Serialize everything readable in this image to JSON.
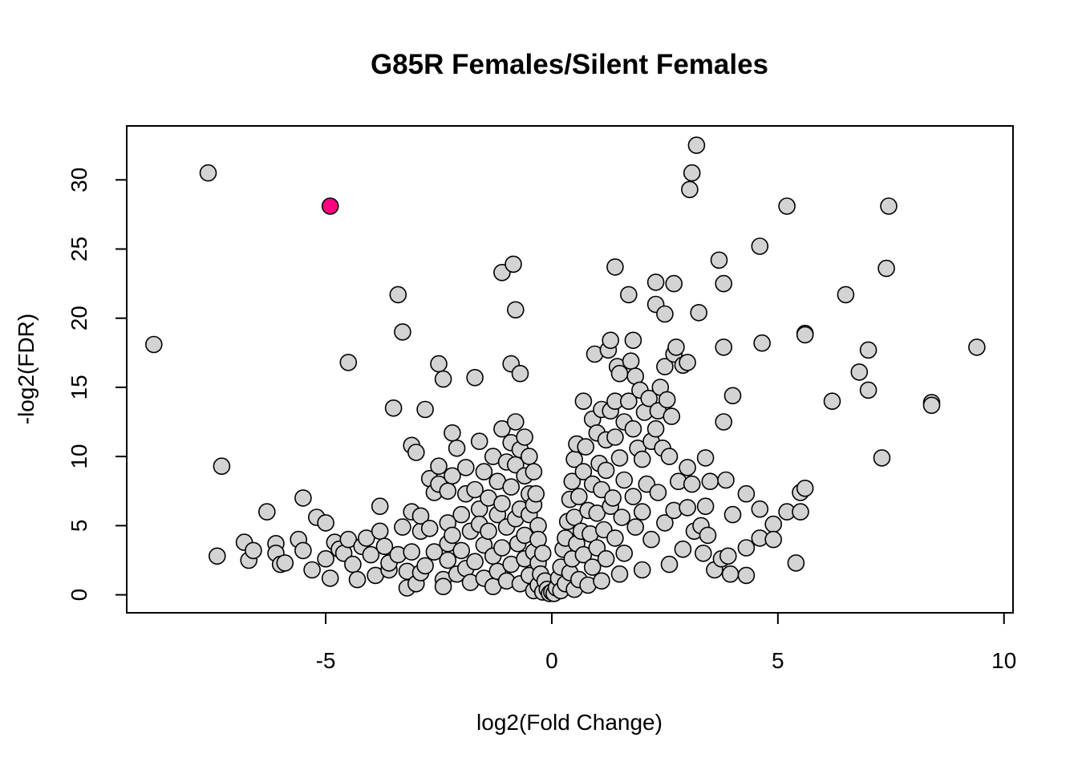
{
  "chart_data": {
    "type": "scatter",
    "title": "G85R Females/Silent Females",
    "xlabel": "log2(Fold Change)",
    "ylabel": "-log2(FDR)",
    "xlim": [
      -9.4,
      10.2
    ],
    "ylim": [
      -1.3,
      33.9
    ],
    "x_ticks": [
      -5,
      0,
      5,
      10
    ],
    "y_ticks": [
      0,
      5,
      10,
      15,
      20,
      25,
      30
    ],
    "grid": false,
    "legend": "none",
    "colors": {
      "point_fill": "#d3d3d3",
      "highlight_fill": "#ff0080",
      "stroke": "#000000"
    },
    "highlighted": [
      {
        "x": -4.9,
        "y": 28.1
      }
    ],
    "points": [
      [
        -8.8,
        18.1
      ],
      [
        -7.6,
        30.5
      ],
      [
        -7.3,
        9.3
      ],
      [
        -7.4,
        2.8
      ],
      [
        -6.8,
        3.8
      ],
      [
        -6.7,
        2.5
      ],
      [
        -6.6,
        3.2
      ],
      [
        -6.3,
        6.0
      ],
      [
        -6.1,
        3.7
      ],
      [
        -6.1,
        3.0
      ],
      [
        -6.0,
        2.2
      ],
      [
        -5.9,
        2.3
      ],
      [
        -5.6,
        4.0
      ],
      [
        -5.5,
        3.2
      ],
      [
        -5.5,
        7.0
      ],
      [
        -5.3,
        1.8
      ],
      [
        -5.2,
        5.6
      ],
      [
        -5.0,
        5.2
      ],
      [
        -5.0,
        2.6
      ],
      [
        -4.9,
        1.2
      ],
      [
        -4.8,
        3.8
      ],
      [
        -4.7,
        3.3
      ],
      [
        -4.6,
        3.0
      ],
      [
        -4.5,
        4.0
      ],
      [
        -4.5,
        16.8
      ],
      [
        -4.4,
        2.2
      ],
      [
        -4.3,
        1.1
      ],
      [
        -4.2,
        3.5
      ],
      [
        -4.1,
        4.1
      ],
      [
        -4.0,
        2.9
      ],
      [
        -3.9,
        1.4
      ],
      [
        -3.8,
        4.6
      ],
      [
        -3.8,
        6.4
      ],
      [
        -3.7,
        3.5
      ],
      [
        -3.6,
        1.8
      ],
      [
        -3.6,
        2.3
      ],
      [
        -3.5,
        13.5
      ],
      [
        -3.4,
        21.7
      ],
      [
        -3.4,
        2.9
      ],
      [
        -3.3,
        19.0
      ],
      [
        -3.3,
        4.9
      ],
      [
        -3.2,
        0.5
      ],
      [
        -3.2,
        1.7
      ],
      [
        -3.1,
        6.0
      ],
      [
        -3.1,
        3.1
      ],
      [
        -3.1,
        10.8
      ],
      [
        -3.0,
        10.3
      ],
      [
        -3.0,
        0.8
      ],
      [
        -2.9,
        1.6
      ],
      [
        -2.9,
        4.6
      ],
      [
        -2.9,
        5.7
      ],
      [
        -2.8,
        13.4
      ],
      [
        -2.8,
        2.1
      ],
      [
        -2.7,
        8.4
      ],
      [
        -2.7,
        4.8
      ],
      [
        -2.6,
        7.4
      ],
      [
        -2.6,
        3.1
      ],
      [
        -2.5,
        16.7
      ],
      [
        -2.5,
        9.3
      ],
      [
        -2.5,
        8.0
      ],
      [
        -2.4,
        15.6
      ],
      [
        -2.4,
        1.1
      ],
      [
        -2.4,
        0.6
      ],
      [
        -2.3,
        7.5
      ],
      [
        -2.3,
        5.2
      ],
      [
        -2.3,
        3.7
      ],
      [
        -2.3,
        2.5
      ],
      [
        -2.2,
        11.7
      ],
      [
        -2.2,
        8.6
      ],
      [
        -2.2,
        4.3
      ],
      [
        -2.1,
        1.5
      ],
      [
        -2.1,
        10.6
      ],
      [
        -2.0,
        5.8
      ],
      [
        -2.0,
        3.2
      ],
      [
        -1.9,
        9.2
      ],
      [
        -1.9,
        7.3
      ],
      [
        -1.9,
        1.9
      ],
      [
        -1.8,
        4.6
      ],
      [
        -1.8,
        0.9
      ],
      [
        -1.7,
        15.7
      ],
      [
        -1.7,
        7.6
      ],
      [
        -1.7,
        2.4
      ],
      [
        -1.6,
        11.1
      ],
      [
        -1.6,
        6.2
      ],
      [
        -1.6,
        5.1
      ],
      [
        -1.5,
        3.6
      ],
      [
        -1.5,
        8.9
      ],
      [
        -1.5,
        1.2
      ],
      [
        -1.4,
        4.6
      ],
      [
        -1.4,
        7.0
      ],
      [
        -1.3,
        2.8
      ],
      [
        -1.3,
        10.0
      ],
      [
        -1.3,
        0.6
      ],
      [
        -1.2,
        5.8
      ],
      [
        -1.2,
        8.2
      ],
      [
        -1.2,
        1.7
      ],
      [
        -1.1,
        23.3
      ],
      [
        -1.1,
        12.0
      ],
      [
        -1.1,
        6.6
      ],
      [
        -1.1,
        3.4
      ],
      [
        -1.0,
        9.6
      ],
      [
        -1.0,
        4.9
      ],
      [
        -1.0,
        1.0
      ],
      [
        -0.9,
        16.7
      ],
      [
        -0.9,
        11.0
      ],
      [
        -0.9,
        7.8
      ],
      [
        -0.9,
        2.2
      ],
      [
        -0.85,
        23.9
      ],
      [
        -0.8,
        20.6
      ],
      [
        -0.8,
        12.5
      ],
      [
        -0.8,
        9.4
      ],
      [
        -0.8,
        5.5
      ],
      [
        -0.75,
        3.7
      ],
      [
        -0.7,
        16.0
      ],
      [
        -0.7,
        10.5
      ],
      [
        -0.7,
        6.2
      ],
      [
        -0.7,
        0.8
      ],
      [
        -0.6,
        11.4
      ],
      [
        -0.6,
        8.6
      ],
      [
        -0.6,
        4.3
      ],
      [
        -0.6,
        2.6
      ],
      [
        -0.5,
        10.0
      ],
      [
        -0.5,
        7.3
      ],
      [
        -0.5,
        5.8
      ],
      [
        -0.5,
        1.4
      ],
      [
        -0.4,
        8.9
      ],
      [
        -0.4,
        6.5
      ],
      [
        -0.4,
        3.1
      ],
      [
        -0.4,
        0.3
      ],
      [
        -0.35,
        7.3
      ],
      [
        -0.3,
        5.0
      ],
      [
        -0.3,
        4.0
      ],
      [
        -0.3,
        2.3
      ],
      [
        -0.3,
        0.7
      ],
      [
        -0.25,
        1.5
      ],
      [
        -0.2,
        3.0
      ],
      [
        -0.2,
        0.2
      ],
      [
        -0.15,
        1.0
      ],
      [
        -0.1,
        0.4
      ],
      [
        -0.05,
        0.1
      ],
      [
        0.0,
        0.2
      ],
      [
        0.05,
        0.1
      ],
      [
        0.1,
        0.5
      ],
      [
        0.15,
        1.2
      ],
      [
        0.2,
        0.3
      ],
      [
        0.2,
        2.0
      ],
      [
        0.25,
        3.3
      ],
      [
        0.3,
        0.8
      ],
      [
        0.3,
        4.1
      ],
      [
        0.35,
        5.3
      ],
      [
        0.4,
        1.6
      ],
      [
        0.4,
        6.9
      ],
      [
        0.45,
        8.2
      ],
      [
        0.45,
        2.6
      ],
      [
        0.5,
        0.4
      ],
      [
        0.5,
        9.8
      ],
      [
        0.5,
        5.6
      ],
      [
        0.55,
        3.7
      ],
      [
        0.55,
        10.9
      ],
      [
        0.6,
        7.1
      ],
      [
        0.6,
        1.1
      ],
      [
        0.65,
        4.6
      ],
      [
        0.7,
        8.9
      ],
      [
        0.7,
        2.9
      ],
      [
        0.7,
        14.0
      ],
      [
        0.75,
        10.7
      ],
      [
        0.8,
        6.1
      ],
      [
        0.8,
        0.7
      ],
      [
        0.85,
        4.4
      ],
      [
        0.9,
        12.7
      ],
      [
        0.9,
        8.0
      ],
      [
        0.9,
        2.0
      ],
      [
        0.95,
        17.4
      ],
      [
        1.0,
        11.7
      ],
      [
        1.0,
        5.9
      ],
      [
        1.0,
        3.4
      ],
      [
        1.05,
        9.5
      ],
      [
        1.1,
        13.4
      ],
      [
        1.1,
        7.6
      ],
      [
        1.1,
        1.0
      ],
      [
        1.15,
        4.7
      ],
      [
        1.2,
        11.2
      ],
      [
        1.2,
        9.0
      ],
      [
        1.2,
        2.6
      ],
      [
        1.25,
        17.7
      ],
      [
        1.3,
        18.4
      ],
      [
        1.3,
        13.3
      ],
      [
        1.3,
        6.4
      ],
      [
        1.35,
        7.0
      ],
      [
        1.4,
        23.7
      ],
      [
        1.4,
        14.0
      ],
      [
        1.4,
        11.4
      ],
      [
        1.4,
        4.1
      ],
      [
        1.45,
        16.5
      ],
      [
        1.5,
        16.0
      ],
      [
        1.5,
        9.9
      ],
      [
        1.5,
        1.5
      ],
      [
        1.55,
        5.6
      ],
      [
        1.6,
        12.5
      ],
      [
        1.6,
        8.3
      ],
      [
        1.6,
        3.0
      ],
      [
        1.7,
        21.7
      ],
      [
        1.7,
        14.0
      ],
      [
        1.75,
        16.9
      ],
      [
        1.8,
        18.4
      ],
      [
        1.8,
        12.0
      ],
      [
        1.8,
        7.1
      ],
      [
        1.85,
        15.8
      ],
      [
        1.85,
        4.9
      ],
      [
        1.9,
        10.6
      ],
      [
        1.95,
        14.8
      ],
      [
        2.0,
        9.8
      ],
      [
        2.0,
        6.0
      ],
      [
        2.0,
        1.8
      ],
      [
        2.05,
        13.2
      ],
      [
        2.1,
        8.0
      ],
      [
        2.15,
        14.2
      ],
      [
        2.2,
        11.1
      ],
      [
        2.2,
        4.0
      ],
      [
        2.3,
        22.6
      ],
      [
        2.3,
        21.0
      ],
      [
        2.3,
        12.0
      ],
      [
        2.35,
        13.3
      ],
      [
        2.35,
        7.4
      ],
      [
        2.4,
        15.0
      ],
      [
        2.45,
        10.6
      ],
      [
        2.5,
        16.5
      ],
      [
        2.5,
        20.3
      ],
      [
        2.5,
        5.2
      ],
      [
        2.55,
        14.1
      ],
      [
        2.6,
        10.0
      ],
      [
        2.6,
        2.2
      ],
      [
        2.65,
        12.9
      ],
      [
        2.7,
        22.5
      ],
      [
        2.7,
        17.4
      ],
      [
        2.7,
        6.1
      ],
      [
        2.75,
        17.9
      ],
      [
        2.8,
        8.2
      ],
      [
        2.9,
        16.6
      ],
      [
        2.9,
        3.3
      ],
      [
        3.0,
        16.8
      ],
      [
        3.0,
        6.3
      ],
      [
        3.0,
        9.2
      ],
      [
        3.05,
        29.3
      ],
      [
        3.1,
        30.5
      ],
      [
        3.1,
        8.0
      ],
      [
        3.15,
        4.6
      ],
      [
        3.2,
        32.5
      ],
      [
        3.25,
        20.4
      ],
      [
        3.3,
        5.0
      ],
      [
        3.35,
        3.0
      ],
      [
        3.4,
        9.9
      ],
      [
        3.4,
        6.4
      ],
      [
        3.45,
        4.3
      ],
      [
        3.5,
        8.2
      ],
      [
        3.6,
        1.8
      ],
      [
        3.7,
        24.2
      ],
      [
        3.75,
        2.6
      ],
      [
        3.8,
        22.5
      ],
      [
        3.8,
        17.9
      ],
      [
        3.8,
        12.5
      ],
      [
        3.85,
        8.3
      ],
      [
        3.9,
        2.8
      ],
      [
        3.95,
        1.5
      ],
      [
        4.0,
        14.4
      ],
      [
        4.0,
        5.8
      ],
      [
        4.3,
        7.3
      ],
      [
        4.3,
        3.4
      ],
      [
        4.3,
        1.4
      ],
      [
        4.6,
        25.2
      ],
      [
        4.6,
        6.2
      ],
      [
        4.6,
        4.1
      ],
      [
        4.65,
        18.2
      ],
      [
        4.9,
        5.1
      ],
      [
        4.9,
        4.0
      ],
      [
        5.2,
        28.1
      ],
      [
        5.2,
        6.0
      ],
      [
        5.4,
        2.3
      ],
      [
        5.5,
        6.0
      ],
      [
        5.5,
        7.4
      ],
      [
        5.6,
        7.7
      ],
      [
        5.6,
        18.9
      ],
      [
        5.6,
        18.8
      ],
      [
        6.2,
        14.0
      ],
      [
        6.5,
        21.7
      ],
      [
        6.8,
        16.1
      ],
      [
        7.0,
        17.7
      ],
      [
        7.0,
        14.8
      ],
      [
        7.3,
        9.9
      ],
      [
        7.4,
        23.6
      ],
      [
        7.45,
        28.1
      ],
      [
        8.4,
        13.9
      ],
      [
        8.4,
        13.7
      ],
      [
        9.4,
        17.9
      ]
    ]
  }
}
